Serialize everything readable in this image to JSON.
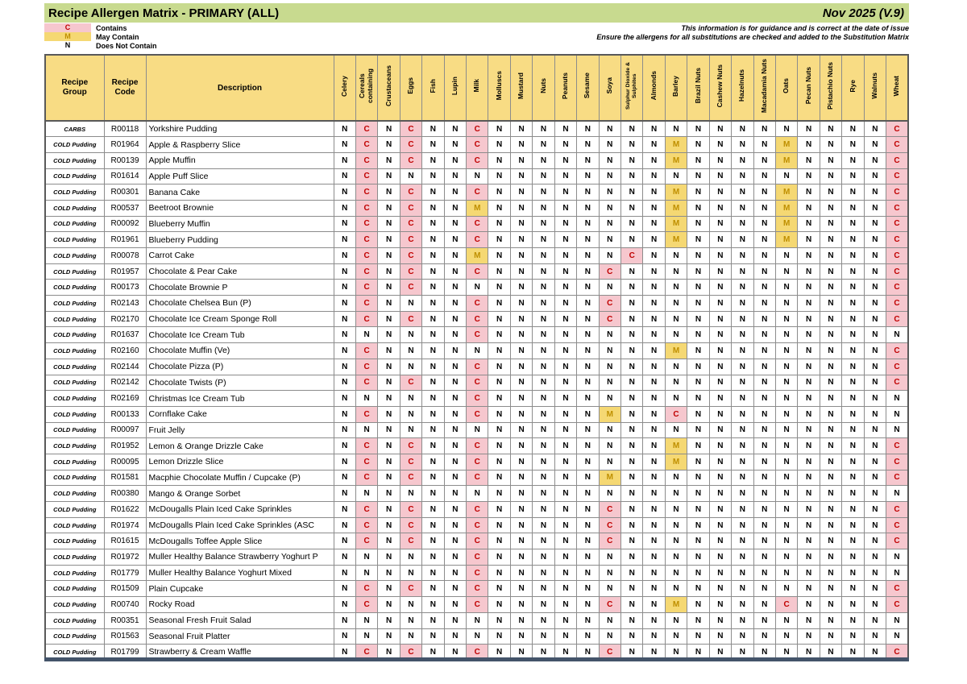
{
  "header": {
    "title": "Recipe Allergen Matrix - PRIMARY (ALL)",
    "date_version": "Nov 2025 (V.9)",
    "disclaimer_line1": "This information is for guidance and is correct at the date of issue",
    "disclaimer_line2": "Ensure the allergens for all substitutions are checked and added to the Substitution Matrix"
  },
  "legend": [
    {
      "symbol": "C",
      "label": "Contains"
    },
    {
      "symbol": "M",
      "label": "May Contain"
    },
    {
      "symbol": "N",
      "label": "Does Not Contain"
    }
  ],
  "colors": {
    "title_bar": "#C8DA8F",
    "header_fill": "#F8DC84",
    "contains_bg": "#F6C7CE",
    "contains_text": "#C00000",
    "may_contain_bg": "#F5D873",
    "may_contain_text": "#BF8F00",
    "bottom_bar": "#44546A"
  },
  "table": {
    "fixed_headers": [
      "Recipe Group",
      "Recipe Code",
      "Description"
    ],
    "allergen_headers": [
      "Celery",
      "Cereals containing",
      "Crustaceans",
      "Eggs",
      "Fish",
      "Lupin",
      "Milk",
      "Molluscs",
      "Mustard",
      "Nuts",
      "Peanuts",
      "Sesame",
      "Soya",
      "Sulphur Dioxide & Sulphites",
      "Almonds",
      "Barley",
      "Brazil Nuts",
      "Cashew Nuts",
      "Hazelnuts",
      "Macadamia Nuts",
      "Oats",
      "Pecan Nuts",
      "Pistachio Nuts",
      "Rye",
      "Walnuts",
      "Wheat"
    ],
    "rows": [
      {
        "group": "CARBS",
        "code": "R00118",
        "description": "Yorkshire Pudding",
        "values": "NCNCNNCNNNNNNNNNNNNNNNNNNC"
      },
      {
        "group": "COLD Pudding",
        "code": "R01964",
        "description": "Apple & Raspberry Slice",
        "values": "NCNCNNCNNNNNNNNMNNNNMNNNNC"
      },
      {
        "group": "COLD Pudding",
        "code": "R00139",
        "description": "Apple Muffin",
        "values": "NCNCNNCNNNNNNNNMNNNNMNNNNC"
      },
      {
        "group": "COLD Pudding",
        "code": "R01614",
        "description": "Apple Puff Slice",
        "values": "NCNNNNNNNNNNNNNNNNNNNNNNNC"
      },
      {
        "group": "COLD Pudding",
        "code": "R00301",
        "description": "Banana Cake",
        "values": "NCNCNNCNNNNNNNNMNNNNMNNNNC"
      },
      {
        "group": "COLD Pudding",
        "code": "R00537",
        "description": "Beetroot Brownie",
        "values": "NCNCNNMNNNNNNNNMNNNNMNNNNC"
      },
      {
        "group": "COLD Pudding",
        "code": "R00092",
        "description": "Blueberry Muffin",
        "values": "NCNCNNCNNNNNNNNMNNNNMNNNNC"
      },
      {
        "group": "COLD Pudding",
        "code": "R01961",
        "description": "Blueberry Pudding",
        "values": "NCNCNNCNNNNNNNNMNNNNMNNNNC"
      },
      {
        "group": "COLD Pudding",
        "code": "R00078",
        "description": "Carrot Cake",
        "values": "NCNCNNMNNNNNNCNNNNNNNNNNNC"
      },
      {
        "group": "COLD Pudding",
        "code": "R01957",
        "description": "Chocolate & Pear Cake",
        "values": "NCNCNNCNNNNNCNNNNNNNNNNNNC"
      },
      {
        "group": "COLD Pudding",
        "code": "R00173",
        "description": "Chocolate Brownie P",
        "values": "NCNCNNNNNNNNNNNNNNNNNNNNNC"
      },
      {
        "group": "COLD Pudding",
        "code": "R02143",
        "description": "Chocolate Chelsea Bun (P)",
        "values": "NCNNNNCNNNNNCNNNNNNNNNNNNC"
      },
      {
        "group": "COLD Pudding",
        "code": "R02170",
        "description": "Chocolate Ice Cream Sponge Roll",
        "values": "NCNCNNCNNNNNCNNNNNNNNNNNNC"
      },
      {
        "group": "COLD Pudding",
        "code": "R01637",
        "description": "Chocolate Ice Cream Tub",
        "values": "NNNNNNCNNNNNNNNNNNNNNNNNNN"
      },
      {
        "group": "COLD Pudding",
        "code": "R02160",
        "description": "Chocolate Muffin (Ve)",
        "values": "NCNNNNNNNNNNNNNMNNNNNNNNNC"
      },
      {
        "group": "COLD Pudding",
        "code": "R02144",
        "description": "Chocolate Pizza (P)",
        "values": "NCNNNNCNNNNNNNNNNNNNNNNNNC"
      },
      {
        "group": "COLD Pudding",
        "code": "R02142",
        "description": "Chocolate Twists (P)",
        "values": "NCNCNNCNNNNNNNNNNNNNNNNNNC"
      },
      {
        "group": "COLD Pudding",
        "code": "R02169",
        "description": "Christmas Ice Cream Tub",
        "values": "NNNNNNCNNNNNNNNNNNNNNNNNNN"
      },
      {
        "group": "COLD Pudding",
        "code": "R00133",
        "description": "Cornflake Cake",
        "values": "NCNNNNCNNNNNMNNCNNNNNNNNNN"
      },
      {
        "group": "COLD Pudding",
        "code": "R00097",
        "description": "Fruit Jelly",
        "values": "NNNNNNNNNNNNNNNNNNNNNNNNNN"
      },
      {
        "group": "COLD Pudding",
        "code": "R01952",
        "description": "Lemon & Orange Drizzle Cake",
        "values": "NCNCNNCNNNNNNNNMNNNNNNNNNC"
      },
      {
        "group": "COLD Pudding",
        "code": "R00095",
        "description": "Lemon Drizzle Slice",
        "values": "NCNCNNCNNNNNNNNMNNNNNNNNNC"
      },
      {
        "group": "COLD Pudding",
        "code": "R01581",
        "description": "Macphie Chocolate Muffin / Cupcake (P)",
        "values": "NCNCNNCNNNNNMNNNNNNNNNNNNC"
      },
      {
        "group": "COLD Pudding",
        "code": "R00380",
        "description": "Mango & Orange Sorbet",
        "values": "NNNNNNNNNNNNNNNNNNNNNNNNNN"
      },
      {
        "group": "COLD Pudding",
        "code": "R01622",
        "description": "McDougalls Plain Iced Cake Sprinkles",
        "values": "NCNCNNCNNNNNCNNNNNNNNNNNNC"
      },
      {
        "group": "COLD Pudding",
        "code": "R01974",
        "description": "McDougalls Plain Iced Cake Sprinkles (ASC",
        "values": "NCNCNNCNNNNNCNNNNNNNNNNNNC"
      },
      {
        "group": "COLD Pudding",
        "code": "R01615",
        "description": "McDougalls Toffee Apple Slice",
        "values": "NCNCNNCNNNNNCNNNNNNNNNNNNC"
      },
      {
        "group": "COLD Pudding",
        "code": "R01972",
        "description": "Muller Healthy Balance Strawberry Yoghurt P",
        "values": "NNNNNNCNNNNNNNNNNNNNNNNNNN"
      },
      {
        "group": "COLD Pudding",
        "code": "R01779",
        "description": "Muller Healthy Balance Yoghurt Mixed",
        "values": "NNNNNNCNNNNNNNNNNNNNNNNNNN"
      },
      {
        "group": "COLD Pudding",
        "code": "R01509",
        "description": "Plain Cupcake",
        "values": "NCNCNNCNNNNNNNNNNNNNNNNNNC"
      },
      {
        "group": "COLD Pudding",
        "code": "R00740",
        "description": "Rocky Road",
        "values": "NCNNNNCNNNNNCNNMNNNNCNNNNC"
      },
      {
        "group": "COLD Pudding",
        "code": "R00351",
        "description": "Seasonal Fresh Fruit Salad",
        "values": "NNNNNNNNNNNNNNNNNNNNNNNNNN"
      },
      {
        "group": "COLD Pudding",
        "code": "R01563",
        "description": "Seasonal Fruit Platter",
        "values": "NNNNNNNNNNNNNNNNNNNNNNNNNN"
      },
      {
        "group": "COLD Pudding",
        "code": "R01799",
        "description": "Strawberry & Cream Waffle",
        "values": "NCNCNNCNNNNNCNNNNNNNNNNNNC"
      }
    ]
  }
}
